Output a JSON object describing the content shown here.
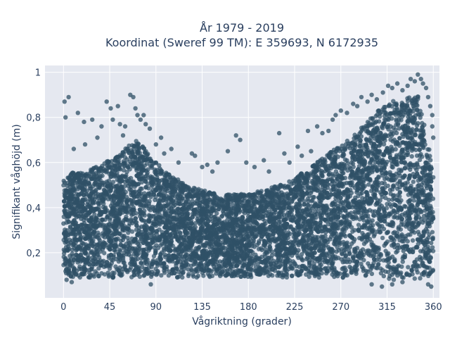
{
  "chart_data": {
    "type": "scatter",
    "title_line1": "År 1979 - 2019",
    "title_line2": "Koordinat (Sweref 99 TM): E 359693, N 6172935",
    "xlabel": "Vågriktning (grader)",
    "ylabel": "Signifikant våghöjd (m)",
    "xlim": [
      -18,
      366
    ],
    "ylim": [
      0.0,
      1.03
    ],
    "x_ticks": [
      0,
      45,
      90,
      135,
      180,
      225,
      270,
      315,
      360
    ],
    "x_tick_labels": [
      "0",
      "45",
      "90",
      "135",
      "180",
      "225",
      "270",
      "315",
      "360"
    ],
    "y_ticks": [
      0.2,
      0.4,
      0.6,
      0.8,
      1.0
    ],
    "y_tick_labels": [
      "0,2",
      "0,4",
      "0,6",
      "0,8",
      "1"
    ],
    "grid": true,
    "marker_color": "#2f5066",
    "plot_background": "#e5e8f0",
    "envelope": {
      "x": [
        0,
        10,
        20,
        30,
        40,
        50,
        60,
        70,
        80,
        90,
        100,
        110,
        120,
        135,
        150,
        165,
        180,
        195,
        210,
        225,
        240,
        255,
        270,
        285,
        300,
        315,
        330,
        345,
        360
      ],
      "lower": [
        0.1,
        0.09,
        0.09,
        0.09,
        0.09,
        0.09,
        0.09,
        0.09,
        0.09,
        0.09,
        0.09,
        0.09,
        0.09,
        0.09,
        0.09,
        0.09,
        0.09,
        0.09,
        0.09,
        0.09,
        0.09,
        0.09,
        0.09,
        0.09,
        0.09,
        0.08,
        0.08,
        0.08,
        0.1
      ],
      "upper": [
        0.52,
        0.56,
        0.55,
        0.58,
        0.6,
        0.62,
        0.66,
        0.7,
        0.66,
        0.6,
        0.56,
        0.53,
        0.5,
        0.48,
        0.46,
        0.46,
        0.46,
        0.48,
        0.5,
        0.53,
        0.58,
        0.63,
        0.68,
        0.73,
        0.8,
        0.87,
        0.88,
        0.9,
        0.58
      ]
    },
    "outliers": [
      [
        1,
        0.87
      ],
      [
        5,
        0.89
      ],
      [
        2,
        0.8
      ],
      [
        14,
        0.82
      ],
      [
        20,
        0.78
      ],
      [
        28,
        0.79
      ],
      [
        42,
        0.87
      ],
      [
        46,
        0.84
      ],
      [
        48,
        0.79
      ],
      [
        53,
        0.85
      ],
      [
        55,
        0.77
      ],
      [
        65,
        0.9
      ],
      [
        68,
        0.89
      ],
      [
        70,
        0.84
      ],
      [
        72,
        0.81
      ],
      [
        75,
        0.79
      ],
      [
        78,
        0.81
      ],
      [
        80,
        0.77
      ],
      [
        84,
        0.75
      ],
      [
        95,
        0.71
      ],
      [
        105,
        0.66
      ],
      [
        125,
        0.64
      ],
      [
        128,
        0.63
      ],
      [
        135,
        0.58
      ],
      [
        150,
        0.6
      ],
      [
        160,
        0.65
      ],
      [
        168,
        0.72
      ],
      [
        172,
        0.7
      ],
      [
        178,
        0.6
      ],
      [
        195,
        0.61
      ],
      [
        210,
        0.73
      ],
      [
        215,
        0.64
      ],
      [
        228,
        0.67
      ],
      [
        232,
        0.63
      ],
      [
        238,
        0.74
      ],
      [
        247,
        0.76
      ],
      [
        252,
        0.73
      ],
      [
        258,
        0.74
      ],
      [
        262,
        0.79
      ],
      [
        265,
        0.81
      ],
      [
        270,
        0.83
      ],
      [
        276,
        0.82
      ],
      [
        282,
        0.86
      ],
      [
        286,
        0.85
      ],
      [
        290,
        0.89
      ],
      [
        296,
        0.87
      ],
      [
        300,
        0.9
      ],
      [
        305,
        0.88
      ],
      [
        311,
        0.91
      ],
      [
        316,
        0.94
      ],
      [
        320,
        0.93
      ],
      [
        325,
        0.95
      ],
      [
        330,
        0.92
      ],
      [
        335,
        0.94
      ],
      [
        338,
        0.97
      ],
      [
        342,
        0.96
      ],
      [
        345,
        0.99
      ],
      [
        348,
        0.97
      ],
      [
        350,
        0.95
      ],
      [
        353,
        0.93
      ],
      [
        355,
        0.89
      ],
      [
        357,
        0.85
      ],
      [
        359,
        0.81
      ],
      [
        359,
        0.76
      ],
      [
        360,
        0.71
      ],
      [
        21,
        0.68
      ],
      [
        10,
        0.66
      ],
      [
        33,
        0.71
      ],
      [
        37,
        0.76
      ],
      [
        60,
        0.76
      ],
      [
        58,
        0.72
      ],
      [
        90,
        0.68
      ],
      [
        98,
        0.64
      ],
      [
        112,
        0.6
      ],
      [
        140,
        0.59
      ],
      [
        145,
        0.56
      ],
      [
        186,
        0.58
      ],
      [
        200,
        0.56
      ],
      [
        220,
        0.6
      ],
      [
        241,
        0.65
      ],
      [
        3,
        0.08
      ],
      [
        8,
        0.07
      ],
      [
        355,
        0.06
      ],
      [
        358,
        0.05
      ],
      [
        85,
        0.06
      ],
      [
        300,
        0.06
      ],
      [
        310,
        0.05
      ],
      [
        320,
        0.06
      ],
      [
        330,
        0.07
      ]
    ]
  }
}
